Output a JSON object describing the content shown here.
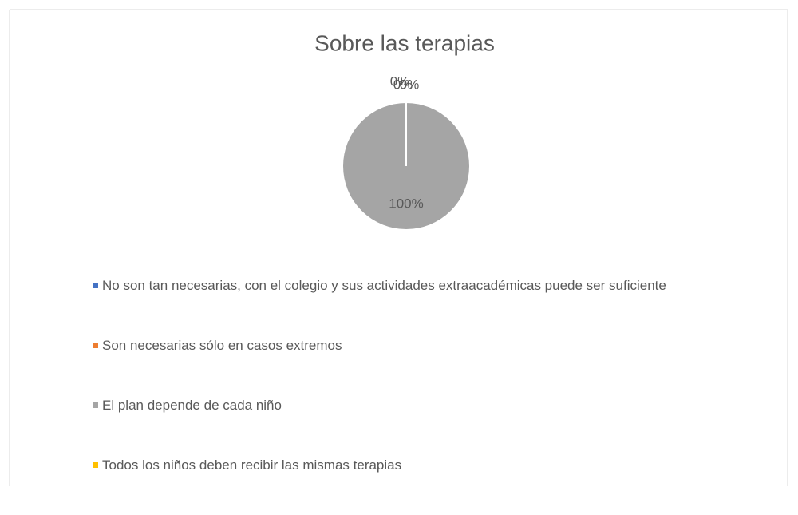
{
  "chart_data": {
    "type": "pie",
    "title": "Sobre las terapias",
    "categories": [
      "No son tan necesarias, con el colegio y sus actividades extraacadémicas puede ser suficiente",
      "Son necesarias sólo en casos extremos",
      "El plan depende de cada niño",
      "Todos los niños deben recibir las mismas terapias"
    ],
    "values": [
      0,
      0,
      100,
      0
    ],
    "value_labels": [
      "0%",
      "0%",
      "100%",
      "0%"
    ],
    "colors": [
      "#4472c4",
      "#ed7d31",
      "#a5a5a5",
      "#ffc000"
    ],
    "legend": "bottom"
  }
}
